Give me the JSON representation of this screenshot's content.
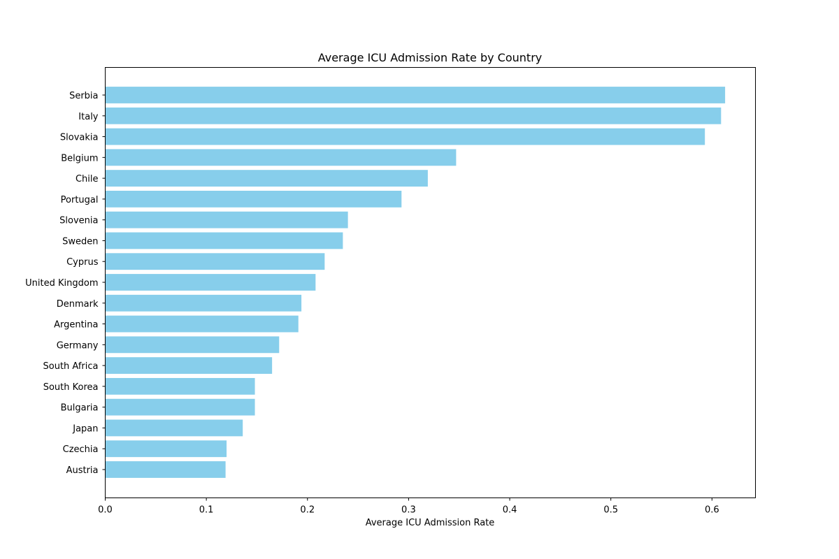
{
  "chart_data": {
    "type": "bar",
    "orientation": "horizontal",
    "title": "Average ICU Admission Rate by Country",
    "xlabel": "Average ICU Admission Rate",
    "ylabel": "",
    "xlim": [
      0,
      0.643
    ],
    "xticks": [
      "0.0",
      "0.1",
      "0.2",
      "0.3",
      "0.4",
      "0.5",
      "0.6"
    ],
    "bar_color": "#87ceeb",
    "grid": false,
    "categories": [
      "Serbia",
      "Italy",
      "Slovakia",
      "Belgium",
      "Chile",
      "Portugal",
      "Slovenia",
      "Sweden",
      "Cyprus",
      "United Kingdom",
      "Denmark",
      "Argentina",
      "Germany",
      "South Africa",
      "South Korea",
      "Bulgaria",
      "Japan",
      "Czechia",
      "Austria"
    ],
    "values": [
      0.613,
      0.609,
      0.593,
      0.347,
      0.319,
      0.293,
      0.24,
      0.235,
      0.217,
      0.208,
      0.194,
      0.191,
      0.172,
      0.165,
      0.148,
      0.148,
      0.136,
      0.12,
      0.119
    ]
  }
}
